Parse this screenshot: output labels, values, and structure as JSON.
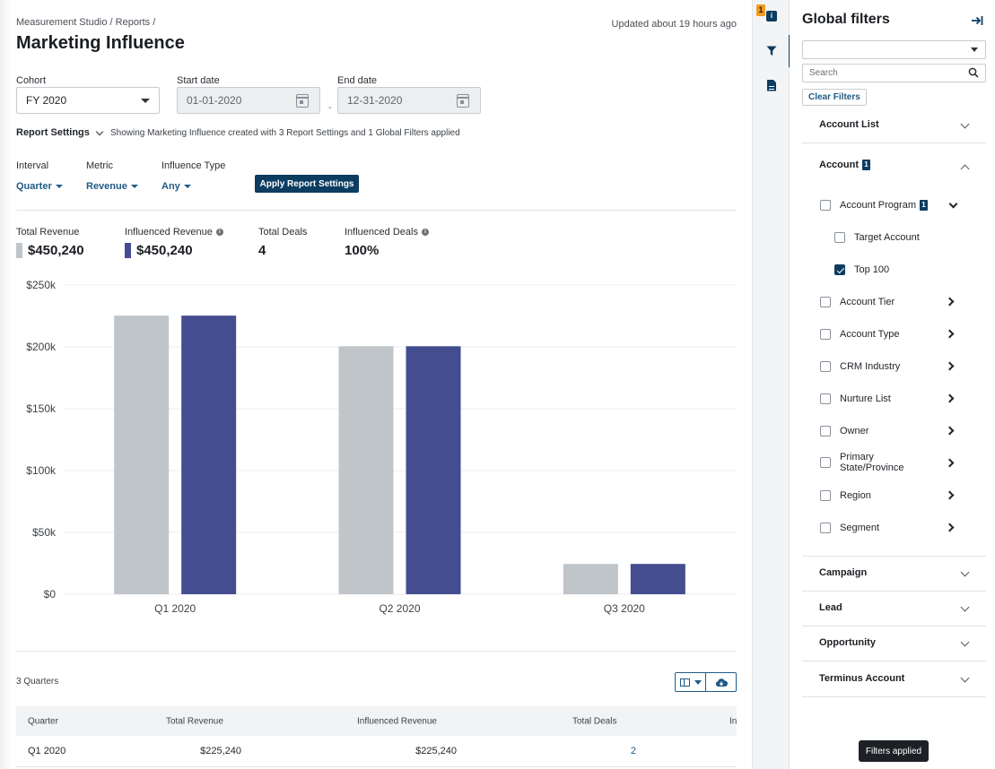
{
  "header": {
    "breadcrumb": "Measurement Studio / Reports /",
    "title": "Marketing Influence",
    "updated": "Updated about 19 hours ago"
  },
  "filters": {
    "cohort_label": "Cohort",
    "cohort_value": "FY 2020",
    "start_label": "Start date",
    "start_value": "01-01-2020",
    "end_label": "End date",
    "end_value": "12-31-2020",
    "separator": "-"
  },
  "report_settings": {
    "toggle_label": "Report Settings",
    "summary": "Showing Marketing Influence created with 3 Report Settings and 1 Global Filters applied",
    "interval_label": "Interval",
    "interval_value": "Quarter",
    "metric_label": "Metric",
    "metric_value": "Revenue",
    "influence_label": "Influence Type",
    "influence_value": "Any",
    "apply_label": "Apply Report Settings"
  },
  "kpis": [
    {
      "label": "Total Revenue",
      "value": "$450,240",
      "swatch": "#bfc5c9",
      "info": false
    },
    {
      "label": "Influenced Revenue",
      "value": "$450,240",
      "swatch": "#434d8f",
      "info": true
    },
    {
      "label": "Total Deals",
      "value": "4",
      "swatch": "",
      "info": false
    },
    {
      "label": "Influenced Deals",
      "value": "100%",
      "swatch": "",
      "info": true
    }
  ],
  "chart_data": {
    "type": "bar",
    "categories": [
      "Q1 2020",
      "Q2 2020",
      "Q3 2020"
    ],
    "series": [
      {
        "name": "Total Revenue",
        "color": "#bfc5c9",
        "values": [
          225240,
          200500,
          24500
        ]
      },
      {
        "name": "Influenced Revenue",
        "color": "#434d8f",
        "values": [
          225240,
          200500,
          24500
        ]
      }
    ],
    "ylim": [
      0,
      250000
    ],
    "yticks": [
      0,
      50000,
      100000,
      150000,
      200000,
      250000
    ],
    "ytick_labels": [
      "$0",
      "$50k",
      "$100k",
      "$150k",
      "$200k",
      "$250k"
    ],
    "grid": true
  },
  "table": {
    "count_label": "3 Quarters",
    "columns": [
      "Quarter",
      "Total Revenue",
      "Influenced Revenue",
      "Total Deals",
      "In"
    ],
    "rows": [
      {
        "quarter": "Q1 2020",
        "total_revenue": "$225,240",
        "influenced_revenue": "$225,240",
        "total_deals": "2"
      }
    ]
  },
  "rail": {
    "badge": "1",
    "info_glyph": "i",
    "icons": [
      "info-icon",
      "filter-icon",
      "document-icon"
    ]
  },
  "panel": {
    "title": "Global filters",
    "select_value": "",
    "search_placeholder": "Search",
    "clear_label": "Clear Filters",
    "sections": [
      {
        "label": "Account List",
        "badge": "",
        "expanded": false
      },
      {
        "label": "Account",
        "badge": "1",
        "expanded": true
      },
      {
        "label": "Campaign",
        "badge": "",
        "expanded": false
      },
      {
        "label": "Lead",
        "badge": "",
        "expanded": false
      },
      {
        "label": "Opportunity",
        "badge": "",
        "expanded": false
      },
      {
        "label": "Terminus Account",
        "badge": "",
        "expanded": false
      }
    ],
    "account_items": [
      {
        "label": "Account Program",
        "badge": "1",
        "checked": false
      },
      {
        "label": "Target Account",
        "checked": false
      },
      {
        "label": "Top 100",
        "checked": true
      },
      {
        "label": "Account Tier",
        "checked": false
      },
      {
        "label": "Account Type",
        "checked": false
      },
      {
        "label": "CRM Industry",
        "checked": false
      },
      {
        "label": "Nurture List",
        "checked": false
      },
      {
        "label": "Owner",
        "checked": false
      },
      {
        "label": "Primary State/Province",
        "checked": false
      },
      {
        "label": "Region",
        "checked": false
      },
      {
        "label": "Segment",
        "checked": false
      }
    ],
    "tooltip": "Filters applied"
  }
}
